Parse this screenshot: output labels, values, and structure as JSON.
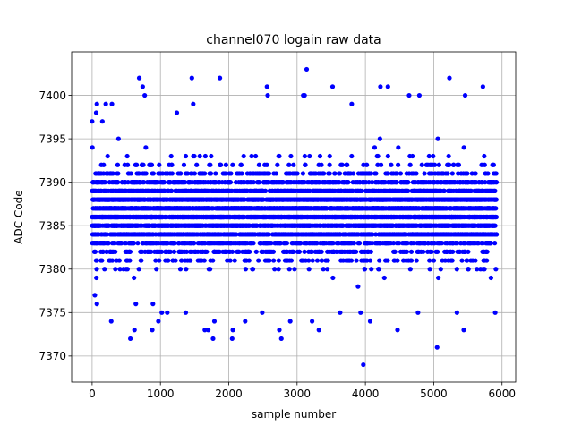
{
  "chart_data": {
    "type": "scatter",
    "title": "channel070 logain raw data",
    "xlabel": "sample number",
    "ylabel": "ADC Code",
    "xlim": [
      -300,
      6200
    ],
    "ylim": [
      7367,
      7405
    ],
    "xticks": [
      0,
      1000,
      2000,
      3000,
      4000,
      5000,
      6000
    ],
    "xtick_labels": [
      "0",
      "1000",
      "2000",
      "3000",
      "4000",
      "5000",
      "6000"
    ],
    "yticks": [
      7370,
      7375,
      7380,
      7385,
      7390,
      7395,
      7400
    ],
    "ytick_labels": [
      "7370",
      "7375",
      "7380",
      "7385",
      "7390",
      "7395",
      "7400"
    ],
    "grid": true,
    "marker_color": "#0000ff",
    "series": [
      {
        "n_samples": 5930,
        "dense_band": {
          "x": [
            0,
            5920
          ],
          "y": [
            7377,
            7396
          ],
          "note": "points at integer ADC codes across all samples"
        },
        "outliers": [
          {
            "x": 0,
            "y": 7397
          },
          {
            "x": 40,
            "y": 7377
          },
          {
            "x": 70,
            "y": 7376
          },
          {
            "x": 60,
            "y": 7398
          },
          {
            "x": 70,
            "y": 7399
          },
          {
            "x": 150,
            "y": 7397
          },
          {
            "x": 200,
            "y": 7399
          },
          {
            "x": 280,
            "y": 7374
          },
          {
            "x": 290,
            "y": 7399
          },
          {
            "x": 560,
            "y": 7372
          },
          {
            "x": 620,
            "y": 7373
          },
          {
            "x": 640,
            "y": 7376
          },
          {
            "x": 690,
            "y": 7402
          },
          {
            "x": 740,
            "y": 7401
          },
          {
            "x": 770,
            "y": 7400
          },
          {
            "x": 880,
            "y": 7373
          },
          {
            "x": 890,
            "y": 7376
          },
          {
            "x": 970,
            "y": 7374
          },
          {
            "x": 1020,
            "y": 7375
          },
          {
            "x": 1100,
            "y": 7375
          },
          {
            "x": 1240,
            "y": 7398
          },
          {
            "x": 1370,
            "y": 7375
          },
          {
            "x": 1460,
            "y": 7402
          },
          {
            "x": 1480,
            "y": 7399
          },
          {
            "x": 1650,
            "y": 7373
          },
          {
            "x": 1700,
            "y": 7373
          },
          {
            "x": 1770,
            "y": 7372
          },
          {
            "x": 1790,
            "y": 7374
          },
          {
            "x": 1870,
            "y": 7402
          },
          {
            "x": 2050,
            "y": 7372
          },
          {
            "x": 2060,
            "y": 7373
          },
          {
            "x": 2240,
            "y": 7374
          },
          {
            "x": 2490,
            "y": 7375
          },
          {
            "x": 2560,
            "y": 7401
          },
          {
            "x": 2570,
            "y": 7400
          },
          {
            "x": 2740,
            "y": 7373
          },
          {
            "x": 2770,
            "y": 7372
          },
          {
            "x": 2900,
            "y": 7374
          },
          {
            "x": 3090,
            "y": 7400
          },
          {
            "x": 3110,
            "y": 7400
          },
          {
            "x": 3140,
            "y": 7403
          },
          {
            "x": 3220,
            "y": 7374
          },
          {
            "x": 3320,
            "y": 7373
          },
          {
            "x": 3520,
            "y": 7401
          },
          {
            "x": 3630,
            "y": 7375
          },
          {
            "x": 3800,
            "y": 7399
          },
          {
            "x": 3930,
            "y": 7375
          },
          {
            "x": 3970,
            "y": 7369
          },
          {
            "x": 4070,
            "y": 7374
          },
          {
            "x": 4220,
            "y": 7401
          },
          {
            "x": 4330,
            "y": 7401
          },
          {
            "x": 4470,
            "y": 7373
          },
          {
            "x": 4640,
            "y": 7400
          },
          {
            "x": 4770,
            "y": 7375
          },
          {
            "x": 4790,
            "y": 7400
          },
          {
            "x": 5050,
            "y": 7371
          },
          {
            "x": 5230,
            "y": 7402
          },
          {
            "x": 5340,
            "y": 7375
          },
          {
            "x": 5440,
            "y": 7373
          },
          {
            "x": 5460,
            "y": 7400
          },
          {
            "x": 5720,
            "y": 7401
          },
          {
            "x": 5900,
            "y": 7375
          }
        ]
      }
    ]
  }
}
